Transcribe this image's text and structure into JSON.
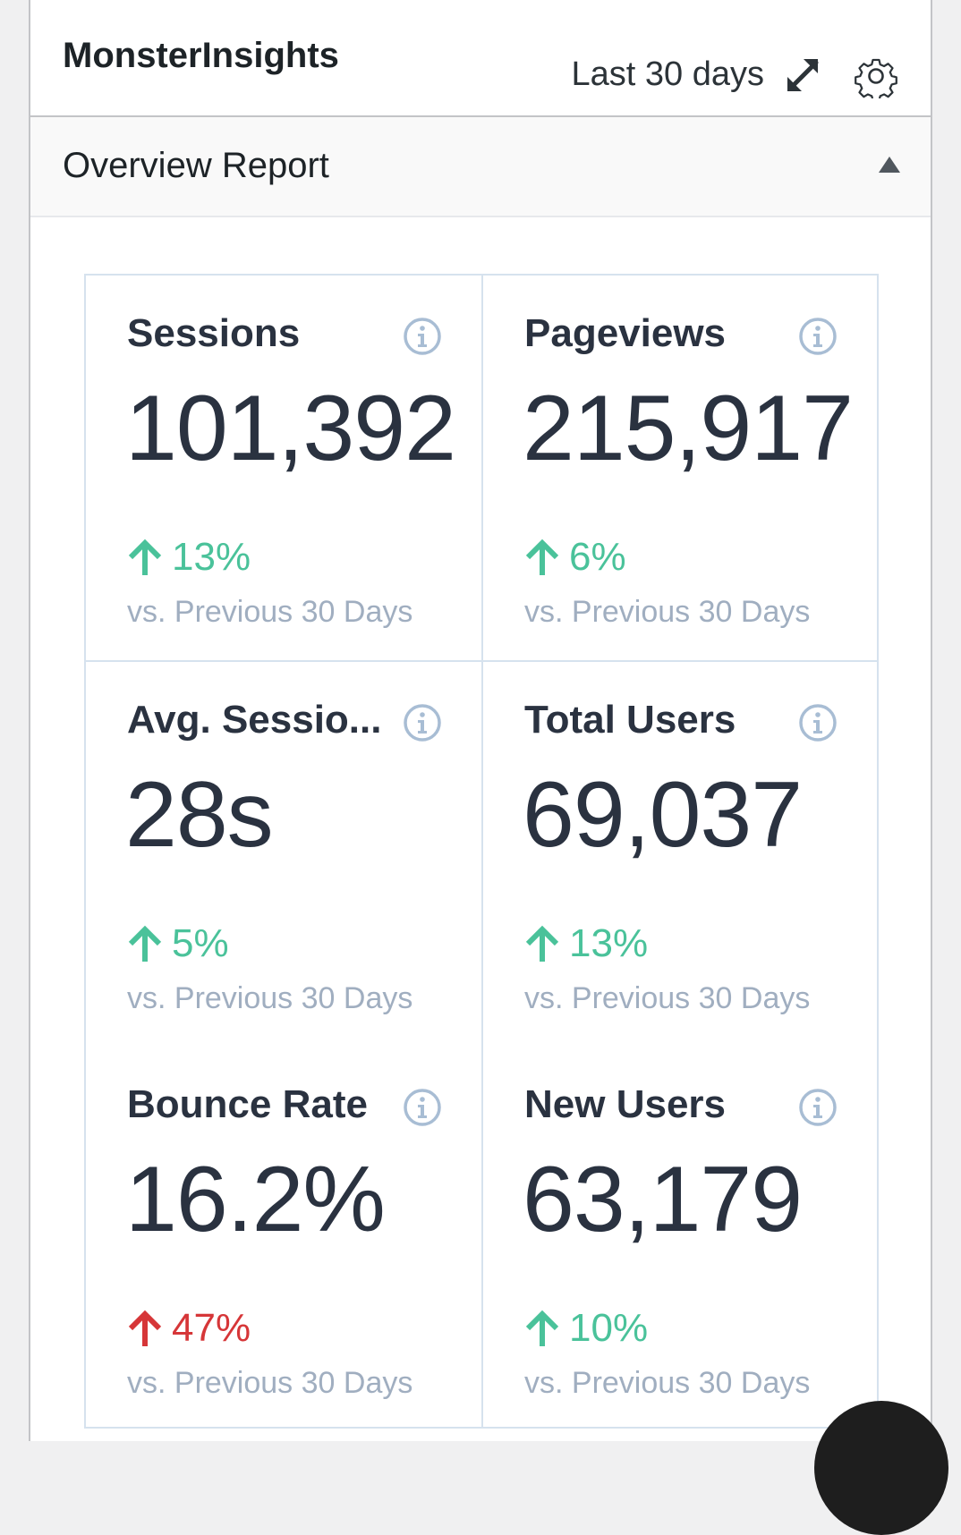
{
  "header": {
    "brand": "MonsterInsights",
    "period": "Last 30 days",
    "expand_icon": "expand-arrows-icon",
    "settings_icon": "gear-icon"
  },
  "report": {
    "title": "Overview Report",
    "collapse_icon": "caret-up-icon"
  },
  "colors": {
    "up": "#4ac29a",
    "down": "#d63638",
    "text": "#2a3240",
    "muted": "#a0aec0",
    "border": "#d6e2ee"
  },
  "metrics": [
    {
      "title": "Sessions",
      "value": "101,392",
      "change": "13%",
      "direction": "up",
      "trend": "good",
      "compare": "vs. Previous 30 Days"
    },
    {
      "title": "Pageviews",
      "value": "215,917",
      "change": "6%",
      "direction": "up",
      "trend": "good",
      "compare": "vs. Previous 30 Days"
    },
    {
      "title": "Avg. Sessio...",
      "value": "28s",
      "change": "5%",
      "direction": "up",
      "trend": "good",
      "compare": "vs. Previous 30 Days"
    },
    {
      "title": "Total Users",
      "value": "69,037",
      "change": "13%",
      "direction": "up",
      "trend": "good",
      "compare": "vs. Previous 30 Days"
    },
    {
      "title": "Bounce Rate",
      "value": "16.2%",
      "change": "47%",
      "direction": "up",
      "trend": "bad",
      "compare": "vs. Previous 30 Days"
    },
    {
      "title": "New Users",
      "value": "63,179",
      "change": "10%",
      "direction": "up",
      "trend": "good",
      "compare": "vs. Previous 30 Days"
    }
  ]
}
